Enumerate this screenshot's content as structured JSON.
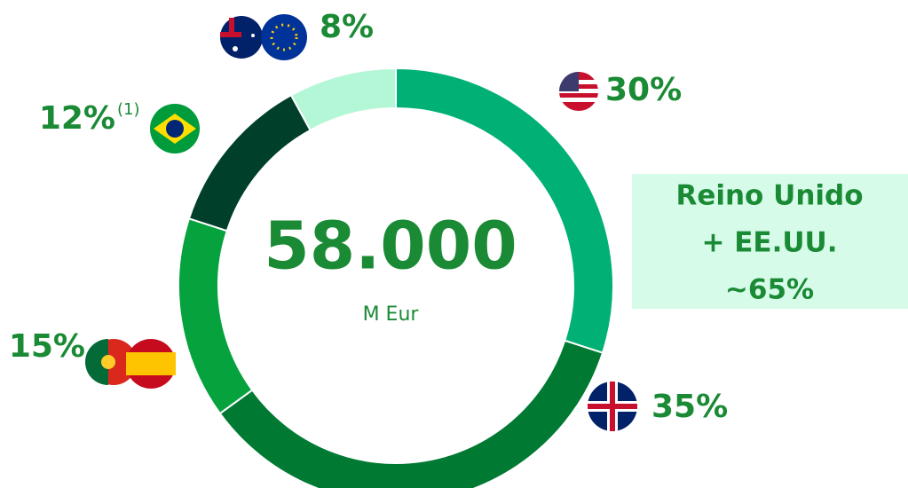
{
  "chart_data": {
    "type": "donut",
    "values": [
      30,
      35,
      15,
      12,
      8
    ],
    "value_labels": [
      "30%",
      "35%",
      "15%",
      "12%",
      "8%"
    ],
    "label_notes": {
      "3": "(1)"
    },
    "colors": [
      "#00b074",
      "#007a33",
      "#06a23e",
      "#003f2a",
      "#b4f7d6"
    ],
    "center_value": "58.000",
    "center_unit": "M Eur",
    "annotation": [
      "Reino Unido",
      "+ EE.UU.",
      "~65%"
    ]
  }
}
